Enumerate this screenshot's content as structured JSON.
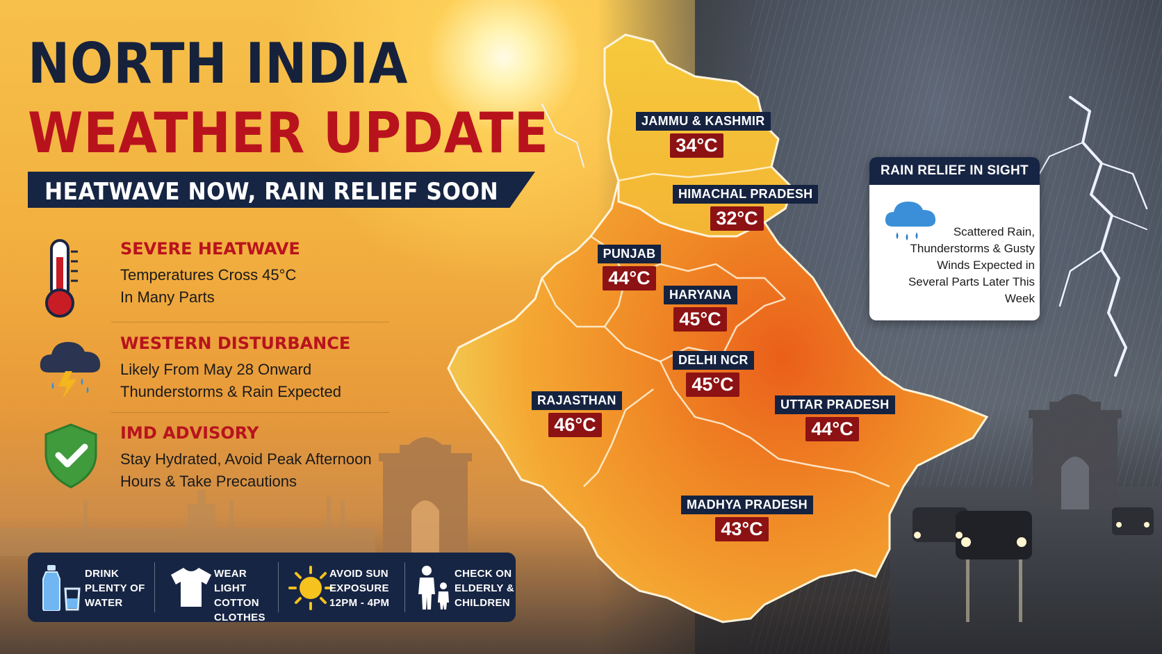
{
  "title": {
    "line1": "NORTH INDIA",
    "line2": "WEATHER UPDATE",
    "subtitle": "HEATWAVE NOW, RAIN RELIEF SOON"
  },
  "info_blocks": [
    {
      "icon": "thermometer-icon",
      "heading": "SEVERE HEATWAVE",
      "line1": "Temperatures Cross 45°C",
      "line2": "In Many Parts"
    },
    {
      "icon": "storm-cloud-icon",
      "heading": "WESTERN DISTURBANCE",
      "line1": "Likely From May 28 Onward",
      "line2": "Thunderstorms & Rain Expected"
    },
    {
      "icon": "shield-check-icon",
      "heading": "IMD ADVISORY",
      "line1": "Stay Hydrated, Avoid Peak Afternoon",
      "line2": "Hours & Take Precautions"
    }
  ],
  "tips": [
    {
      "icon": "water-bottle-icon",
      "label": "DRINK\nPLENTY OF\nWATER"
    },
    {
      "icon": "tshirt-icon",
      "label": "WEAR LIGHT\nCOTTON\nCLOTHES"
    },
    {
      "icon": "sun-icon",
      "label": "AVOID SUN\nEXPOSURE\n12PM - 4PM"
    },
    {
      "icon": "family-icon",
      "label": "CHECK ON\nELDERLY &\nCHILDREN"
    }
  ],
  "map": {
    "states": [
      {
        "name": "JAMMU & KASHMIR",
        "temp": "34°C"
      },
      {
        "name": "HIMACHAL PRADESH",
        "temp": "32°C"
      },
      {
        "name": "PUNJAB",
        "temp": "44°C"
      },
      {
        "name": "HARYANA",
        "temp": "45°C"
      },
      {
        "name": "DELHI NCR",
        "temp": "45°C"
      },
      {
        "name": "RAJASTHAN",
        "temp": "46°C"
      },
      {
        "name": "UTTAR PRADESH",
        "temp": "44°C"
      },
      {
        "name": "MADHYA PRADESH",
        "temp": "43°C"
      }
    ]
  },
  "rain_card": {
    "heading": "RAIN RELIEF IN SIGHT",
    "icon": "rain-cloud-icon",
    "text": "Scattered Rain, Thunderstorms & Gusty Winds Expected in Several Parts Later This Week"
  },
  "colors": {
    "navy": "#172544",
    "red": "#b8131d",
    "temp_badge": "#8c1214",
    "heat_light": "#f5c93a",
    "heat_dark": "#ea6a1e"
  }
}
